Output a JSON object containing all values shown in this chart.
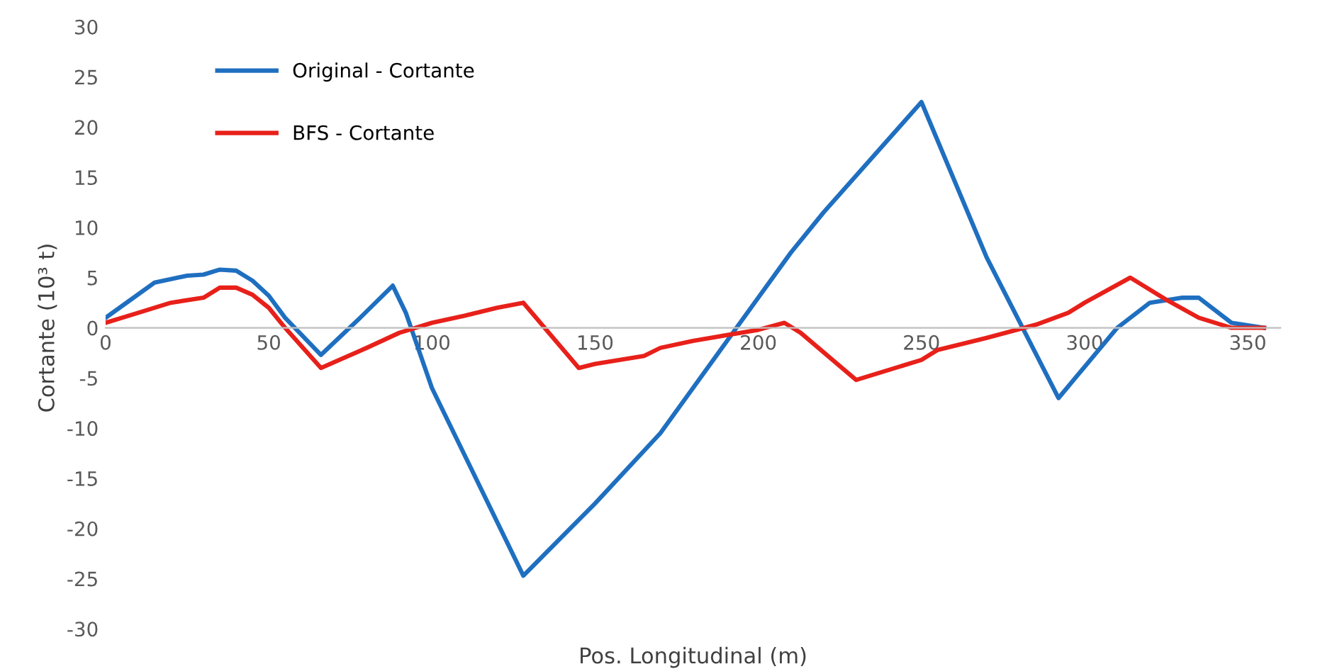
{
  "chart_data": {
    "type": "line",
    "xlabel": "Pos. Longitudinal (m)",
    "ylabel": "Cortante (10³ t)",
    "xlim": [
      0,
      360
    ],
    "xticks": [
      0,
      50,
      100,
      150,
      200,
      250,
      300,
      350
    ],
    "ylim": [
      -30,
      30
    ],
    "yticks": [
      -30,
      -25,
      -20,
      -15,
      -10,
      -5,
      0,
      5,
      10,
      15,
      20,
      25,
      30
    ],
    "grid": false,
    "legend": "top left",
    "marker": "none",
    "line_style": "solid",
    "series": [
      {
        "name": "Original - Cortante",
        "color": "#1f6fc0",
        "x": [
          0,
          15,
          25,
          30,
          35,
          40,
          45,
          50,
          55,
          66,
          78,
          88,
          92,
          100,
          128,
          150,
          170,
          180,
          190,
          200,
          210,
          220,
          250,
          270,
          292,
          310,
          320,
          330,
          335,
          345,
          355
        ],
        "values": [
          1,
          4.5,
          5.2,
          5.3,
          5.8,
          5.7,
          4.7,
          3.2,
          1,
          -2.7,
          1,
          4.2,
          1.5,
          -6,
          -24.7,
          -17.5,
          -10.5,
          -6,
          -1.5,
          3,
          7.5,
          11.5,
          22.5,
          7,
          -7,
          0,
          2.5,
          3,
          3,
          0.5,
          0
        ]
      },
      {
        "name": "BFS - Cortante",
        "color": "#e8201a",
        "x": [
          0,
          10,
          20,
          30,
          35,
          40,
          45,
          50,
          55,
          66,
          80,
          90,
          100,
          110,
          120,
          128,
          145,
          150,
          165,
          170,
          180,
          200,
          208,
          213,
          230,
          250,
          255,
          270,
          285,
          295,
          300,
          314,
          325,
          335,
          345,
          355
        ],
        "values": [
          0.5,
          1.5,
          2.5,
          3,
          4,
          4,
          3.3,
          2,
          0,
          -4,
          -2,
          -0.5,
          0.5,
          1.2,
          2,
          2.5,
          -4,
          -3.6,
          -2.8,
          -2,
          -1.3,
          -0.2,
          0.5,
          -0.5,
          -5.2,
          -3.2,
          -2.2,
          -1,
          0.3,
          1.5,
          2.5,
          5,
          2.8,
          1,
          0,
          0
        ]
      }
    ]
  }
}
